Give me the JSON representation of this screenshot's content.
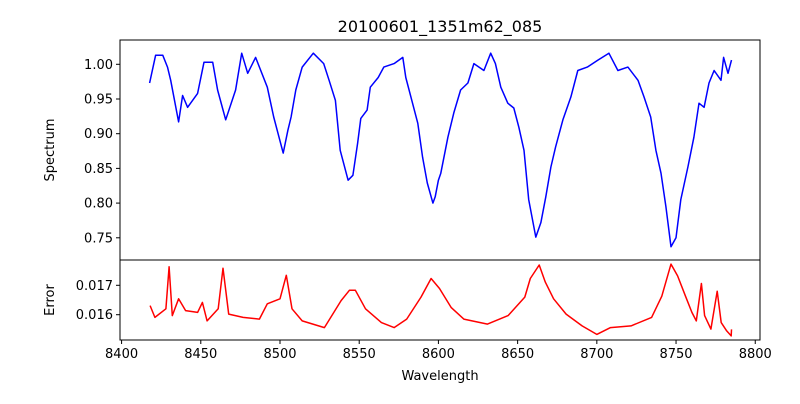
{
  "chart_data": [
    {
      "type": "line",
      "title": "20100601_1351m62_085",
      "xlabel": "",
      "ylabel": "Spectrum",
      "xlim": [
        8399,
        8803
      ],
      "ylim": [
        0.718,
        1.035
      ],
      "yticks": [
        0.75,
        0.8,
        0.85,
        0.9,
        0.95,
        1.0
      ],
      "ytick_labels": [
        "0.75",
        "0.80",
        "0.85",
        "0.90",
        "0.95",
        "1.00"
      ],
      "grid": false,
      "series": [
        {
          "name": "Spectrum",
          "color": "#0000ff",
          "x": [
            8417.7,
            8421.5,
            8426,
            8429,
            8431,
            8436,
            8438.5,
            8441.7,
            8448,
            8452,
            8457.5,
            8460.6,
            8465.7,
            8472,
            8475.8,
            8479.6,
            8484.6,
            8492,
            8496,
            8502,
            8505,
            8507,
            8510,
            8514,
            8521,
            8527.6,
            8531,
            8535,
            8538,
            8543,
            8546,
            8549,
            8551,
            8555,
            8557,
            8562,
            8565.5,
            8572,
            8577.5,
            8579.4,
            8582.6,
            8587,
            8590,
            8593,
            8596.5,
            8598,
            8600,
            8601.5,
            8606,
            8609.7,
            8614,
            8618.6,
            8622.4,
            8628.7,
            8633,
            8636,
            8639.4,
            8643.8,
            8647.6,
            8650.8,
            8654,
            8657,
            8661.5,
            8664.7,
            8667.8,
            8671,
            8674,
            8678.6,
            8683.6,
            8688,
            8694,
            8700.7,
            8707.6,
            8713.3,
            8719.6,
            8726,
            8729.8,
            8734,
            8737.3,
            8740.5,
            8743.6,
            8746.8,
            8750,
            8753,
            8757.5,
            8761.3,
            8764.5,
            8767.7,
            8770.8,
            8774,
            8778.4,
            8780,
            8782.8,
            8785
          ],
          "y": [
            0.973,
            1.013,
            1.013,
            0.996,
            0.977,
            0.917,
            0.955,
            0.938,
            0.958,
            1.003,
            1.003,
            0.963,
            0.92,
            0.963,
            1.016,
            0.987,
            1.01,
            0.967,
            0.924,
            0.872,
            0.905,
            0.924,
            0.963,
            0.996,
            1.016,
            1.001,
            0.977,
            0.948,
            0.876,
            0.833,
            0.84,
            0.886,
            0.922,
            0.934,
            0.967,
            0.981,
            0.996,
            1.001,
            1.01,
            0.981,
            0.953,
            0.915,
            0.866,
            0.829,
            0.8,
            0.809,
            0.833,
            0.843,
            0.895,
            0.93,
            0.963,
            0.973,
            1.001,
            0.991,
            1.016,
            1.001,
            0.967,
            0.944,
            0.937,
            0.909,
            0.876,
            0.805,
            0.751,
            0.772,
            0.809,
            0.852,
            0.881,
            0.92,
            0.953,
            0.991,
            0.996,
            1.006,
            1.016,
            0.991,
            0.996,
            0.977,
            0.953,
            0.924,
            0.876,
            0.843,
            0.795,
            0.737,
            0.75,
            0.805,
            0.852,
            0.895,
            0.944,
            0.938,
            0.973,
            0.991,
            0.977,
            1.01,
            0.987,
            1.006
          ]
        }
      ]
    },
    {
      "type": "line",
      "title": "",
      "xlabel": "Wavelength",
      "ylabel": "Error",
      "xlim": [
        8399,
        8803
      ],
      "ylim": [
        0.01514,
        0.01786
      ],
      "xticks": [
        8400,
        8450,
        8500,
        8550,
        8600,
        8650,
        8700,
        8750,
        8800
      ],
      "xtick_labels": [
        "8400",
        "8450",
        "8500",
        "8550",
        "8600",
        "8650",
        "8700",
        "8750",
        "8800"
      ],
      "yticks": [
        0.016,
        0.017
      ],
      "ytick_labels": [
        "0.016",
        "0.017"
      ],
      "grid": false,
      "series": [
        {
          "name": "Error",
          "color": "#ff0000",
          "x": [
            8418,
            8421,
            8428,
            8430,
            8432,
            8436,
            8440.4,
            8448,
            8451,
            8454,
            8461,
            8464,
            8467.6,
            8476.7,
            8487,
            8492,
            8500,
            8504,
            8507.6,
            8514,
            8528,
            8538.6,
            8543.8,
            8547.6,
            8554,
            8564,
            8572,
            8580,
            8589,
            8595.4,
            8600.7,
            8608,
            8616,
            8631,
            8644,
            8654.5,
            8658,
            8663.6,
            8667.5,
            8672.7,
            8680.6,
            8690.7,
            8700,
            8708.6,
            8721.6,
            8734.6,
            8741,
            8746.8,
            8751,
            8756,
            8760,
            8762.8,
            8766,
            8768,
            8772,
            8776,
            8778.5,
            8782,
            8784.8,
            8785
          ],
          "y": [
            0.01631,
            0.01591,
            0.0162,
            0.01763,
            0.01597,
            0.01654,
            0.01614,
            0.01608,
            0.01642,
            0.01579,
            0.0162,
            0.01758,
            0.01602,
            0.01591,
            0.01585,
            0.01637,
            0.01654,
            0.01734,
            0.0162,
            0.01579,
            0.01556,
            0.01648,
            0.01683,
            0.01683,
            0.0162,
            0.01573,
            0.01556,
            0.01585,
            0.0166,
            0.01723,
            0.01689,
            0.01625,
            0.01585,
            0.01568,
            0.01597,
            0.0166,
            0.01723,
            0.01769,
            0.01711,
            0.01654,
            0.01602,
            0.01562,
            0.01533,
            0.01556,
            0.01562,
            0.01591,
            0.01663,
            0.01772,
            0.01732,
            0.01663,
            0.01608,
            0.01579,
            0.01706,
            0.01597,
            0.01551,
            0.0168,
            0.01573,
            0.01545,
            0.01528,
            0.0155
          ]
        }
      ]
    }
  ]
}
